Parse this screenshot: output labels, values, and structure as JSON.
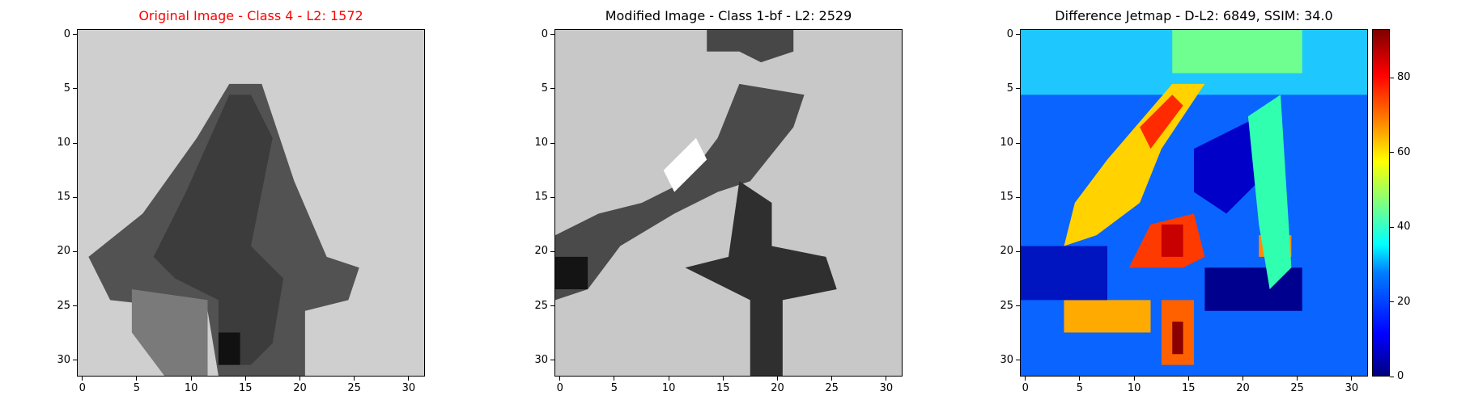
{
  "panels": [
    {
      "title": "Original Image - Class 4 - L2: 1572",
      "title_color": "#ff0000"
    },
    {
      "title": "Modified Image - Class 1-bf - L2: 2529",
      "title_color": "#000000"
    },
    {
      "title": "Difference Jetmap - D-L2: 6849, SSIM: 34.0",
      "title_color": "#000000"
    }
  ],
  "chart_data": [
    {
      "type": "heatmap",
      "title": "Original Image - Class 4 - L2: 1572",
      "colormap": "gray",
      "xlim": [
        -0.5,
        31.5
      ],
      "ylim": [
        31.5,
        -0.5
      ],
      "xticks": [
        0,
        5,
        10,
        15,
        20,
        25,
        30
      ],
      "yticks": [
        0,
        5,
        10,
        15,
        20,
        25,
        30
      ],
      "grid": false
    },
    {
      "type": "heatmap",
      "title": "Modified Image - Class 1-bf - L2: 2529",
      "colormap": "gray",
      "xlim": [
        -0.5,
        31.5
      ],
      "ylim": [
        31.5,
        -0.5
      ],
      "xticks": [
        0,
        5,
        10,
        15,
        20,
        25,
        30
      ],
      "yticks": [
        0,
        5,
        10,
        15,
        20,
        25,
        30
      ],
      "grid": false
    },
    {
      "type": "heatmap",
      "title": "Difference Jetmap - D-L2: 6849, SSIM: 34.0",
      "colormap": "jet",
      "xlim": [
        -0.5,
        31.5
      ],
      "ylim": [
        31.5,
        -0.5
      ],
      "xticks": [
        0,
        5,
        10,
        15,
        20,
        25,
        30
      ],
      "yticks": [
        0,
        5,
        10,
        15,
        20,
        25,
        30
      ],
      "colorbar": {
        "range": [
          0,
          93
        ],
        "ticks": [
          0,
          20,
          40,
          60,
          80
        ]
      },
      "grid": false
    }
  ],
  "tick_labels": [
    "0",
    "5",
    "10",
    "15",
    "20",
    "25",
    "30"
  ],
  "colorbar_labels": [
    "0",
    "20",
    "40",
    "60",
    "80"
  ]
}
